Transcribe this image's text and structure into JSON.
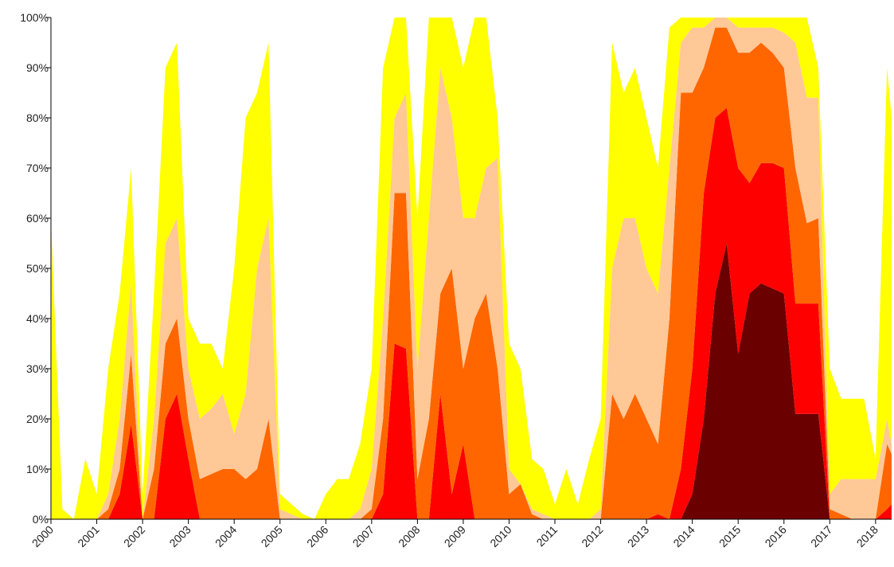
{
  "chart_data": {
    "type": "area",
    "stacked": true,
    "xlim": [
      2000,
      2018.35
    ],
    "ylim": [
      0,
      100
    ],
    "xticks": [
      2000,
      2001,
      2002,
      2003,
      2004,
      2005,
      2006,
      2007,
      2008,
      2009,
      2010,
      2011,
      2012,
      2013,
      2014,
      2015,
      2016,
      2017,
      2018
    ],
    "yticks": [
      {
        "value": 0,
        "label": "0%"
      },
      {
        "value": 10,
        "label": "10%"
      },
      {
        "value": 20,
        "label": "20%"
      },
      {
        "value": 30,
        "label": "30%"
      },
      {
        "value": 40,
        "label": "40%"
      },
      {
        "value": 50,
        "label": "50%"
      },
      {
        "value": 60,
        "label": "60%"
      },
      {
        "value": 70,
        "label": "70%"
      },
      {
        "value": 80,
        "label": "80%"
      },
      {
        "value": 90,
        "label": "90%"
      },
      {
        "value": 100,
        "label": "100%"
      }
    ],
    "x": [
      2000,
      2000.25,
      2000.5,
      2000.75,
      2001,
      2001.25,
      2001.5,
      2001.75,
      2002,
      2002.25,
      2002.5,
      2002.75,
      2003,
      2003.25,
      2003.5,
      2003.75,
      2004,
      2004.25,
      2004.5,
      2004.75,
      2005,
      2005.25,
      2005.5,
      2005.75,
      2006,
      2006.25,
      2006.5,
      2006.75,
      2007,
      2007.25,
      2007.5,
      2007.75,
      2008,
      2008.25,
      2008.5,
      2008.75,
      2009,
      2009.25,
      2009.5,
      2009.75,
      2010,
      2010.25,
      2010.5,
      2010.75,
      2011,
      2011.25,
      2011.5,
      2011.75,
      2012,
      2012.25,
      2012.5,
      2012.75,
      2013,
      2013.25,
      2013.5,
      2013.75,
      2014,
      2014.25,
      2014.5,
      2014.75,
      2015,
      2015.25,
      2015.5,
      2015.75,
      2016,
      2016.25,
      2016.5,
      2016.75,
      2017,
      2017.25,
      2017.5,
      2017.75,
      2018,
      2018.25,
      2018.35
    ],
    "series": [
      {
        "color": "#6b0000",
        "values": [
          0,
          0,
          0,
          0,
          0,
          0,
          0,
          0,
          0,
          0,
          0,
          0,
          0,
          0,
          0,
          0,
          0,
          0,
          0,
          0,
          0,
          0,
          0,
          0,
          0,
          0,
          0,
          0,
          0,
          0,
          0,
          0,
          0,
          0,
          0,
          0,
          0,
          0,
          0,
          0,
          0,
          0,
          0,
          0,
          0,
          0,
          0,
          0,
          0,
          0,
          0,
          0,
          0,
          0,
          0,
          0,
          5,
          20,
          45,
          55,
          33,
          45,
          47,
          46,
          45,
          21,
          21,
          21,
          0,
          0,
          0,
          0,
          0,
          0,
          0
        ]
      },
      {
        "color": "#ff0000",
        "values": [
          0,
          0,
          0,
          0,
          0,
          0,
          5,
          19,
          0,
          0,
          20,
          25,
          12,
          0,
          0,
          0,
          0,
          0,
          0,
          0,
          0,
          0,
          0,
          0,
          0,
          0,
          0,
          0,
          0,
          5,
          35,
          34,
          0,
          0,
          25,
          5,
          15,
          0,
          0,
          0,
          0,
          0,
          0,
          0,
          0,
          0,
          0,
          0,
          0,
          0,
          0,
          0,
          0,
          1,
          0,
          10,
          25,
          45,
          35,
          27,
          37,
          22,
          24,
          25,
          25,
          22,
          22,
          22,
          0,
          0,
          0,
          0,
          0,
          2,
          3
        ]
      },
      {
        "color": "#ff6600",
        "values": [
          0,
          0,
          0,
          0,
          0,
          2,
          5,
          14,
          0,
          10,
          15,
          15,
          8,
          8,
          9,
          10,
          10,
          8,
          10,
          20,
          0,
          0,
          0,
          0,
          0,
          0,
          0,
          0,
          2,
          15,
          30,
          31,
          8,
          20,
          20,
          45,
          15,
          40,
          45,
          30,
          5,
          7,
          1,
          0,
          0,
          0,
          0,
          0,
          0,
          25,
          20,
          25,
          20,
          14,
          40,
          75,
          55,
          25,
          18,
          16,
          23,
          26,
          24,
          22,
          20,
          27,
          16,
          17,
          2,
          1,
          0,
          0,
          0,
          13,
          10
        ]
      },
      {
        "color": "#ffc896",
        "values": [
          0,
          0,
          0,
          0,
          0,
          3,
          10,
          14,
          0,
          10,
          20,
          20,
          10,
          12,
          13,
          15,
          7,
          17,
          40,
          40,
          2,
          1,
          0,
          0,
          0,
          0,
          0,
          2,
          8,
          20,
          15,
          20,
          22,
          40,
          45,
          30,
          30,
          20,
          25,
          42,
          5,
          0,
          1,
          1,
          0,
          0,
          0,
          0,
          2,
          25,
          40,
          35,
          30,
          30,
          30,
          10,
          13,
          8,
          2,
          2,
          5,
          5,
          3,
          5,
          7,
          25,
          25,
          24,
          3,
          7,
          8,
          8,
          8,
          5,
          2
        ]
      },
      {
        "color": "#ffff00",
        "values": [
          60,
          2,
          0,
          12,
          5,
          25,
          25,
          23,
          5,
          25,
          35,
          35,
          10,
          15,
          13,
          5,
          33,
          55,
          35,
          35,
          3,
          2,
          1,
          0,
          5,
          8,
          8,
          13,
          20,
          50,
          20,
          15,
          30,
          40,
          10,
          20,
          30,
          40,
          30,
          8,
          25,
          23,
          10,
          9,
          3,
          10,
          3,
          12,
          18,
          45,
          25,
          30,
          30,
          25,
          28,
          5,
          2,
          2,
          0,
          0,
          2,
          2,
          2,
          2,
          3,
          5,
          16,
          6,
          25,
          16,
          16,
          16,
          4,
          70,
          65
        ]
      }
    ]
  }
}
